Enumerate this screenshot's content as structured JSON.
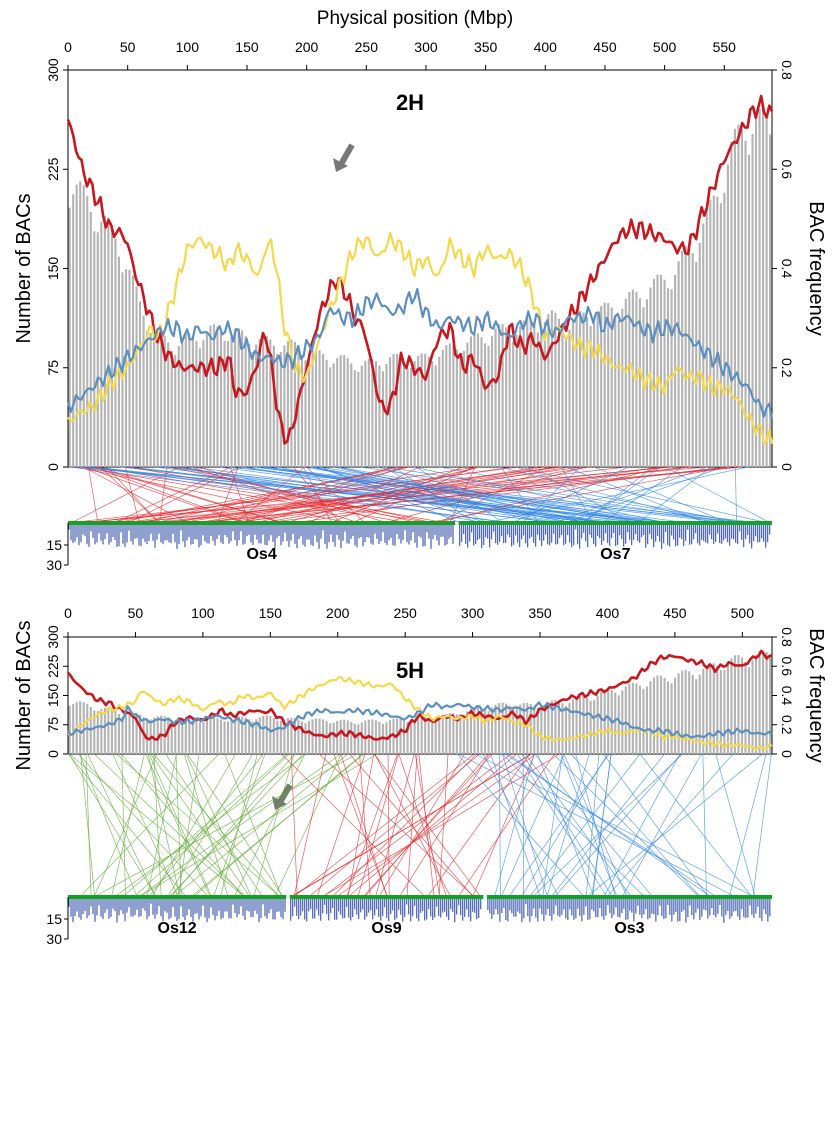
{
  "figure": {
    "top_axis_label": "Physical position (Mbp)",
    "colors": {
      "bars": "#b3b3b3",
      "red": "#c8171e",
      "yellow": "#f5d84c",
      "blue": "#5b8fc2",
      "syn_red": "#e8262b",
      "syn_blue": "#2f86e6",
      "syn_green": "#5aa82e",
      "rice_line": "#16a02a",
      "rice_bars": "#1f3fa0"
    }
  },
  "chart_data": [
    {
      "type": "bar",
      "title": "2H",
      "xlabel": "Physical position (Mbp)",
      "ylabel": "Number of BACs",
      "y2label": "BAC frequency",
      "xlim": [
        0,
        590
      ],
      "ylim": [
        0,
        300
      ],
      "y2lim": [
        0,
        0.8
      ],
      "xticks": [
        "0",
        "50",
        "100",
        "150",
        "200",
        "250",
        "300",
        "350",
        "400",
        "450",
        "500",
        "550"
      ],
      "yticks": [
        "0",
        "75",
        "150",
        "225",
        "300"
      ],
      "y2ticks": [
        "0",
        "0.2",
        "0.4",
        "0.6",
        "0.8"
      ],
      "bars": {
        "x": [
          0,
          15,
          30,
          45,
          60,
          75,
          90,
          105,
          120,
          135,
          150,
          165,
          180,
          195,
          210,
          225,
          240,
          255,
          270,
          285,
          300,
          315,
          330,
          345,
          360,
          375,
          390,
          405,
          420,
          435,
          450,
          465,
          480,
          495,
          510,
          525,
          540,
          555,
          570,
          585
        ],
        "values": [
          215,
          195,
          180,
          160,
          120,
          95,
          90,
          95,
          100,
          100,
          95,
          92,
          90,
          88,
          82,
          80,
          76,
          76,
          80,
          78,
          80,
          85,
          90,
          95,
          100,
          102,
          105,
          110,
          105,
          112,
          115,
          120,
          128,
          135,
          145,
          165,
          190,
          230,
          255,
          250
        ]
      },
      "series": [
        {
          "color": "red",
          "x": [
            0,
            5,
            12,
            20,
            28,
            35,
            45,
            50,
            55,
            65,
            75,
            85,
            95,
            105,
            115,
            125,
            135,
            140,
            150,
            160,
            165,
            172,
            178,
            185,
            190,
            200,
            210,
            218,
            225,
            235,
            240,
            248,
            255,
            262,
            270,
            280,
            290,
            300,
            310,
            320,
            330,
            340,
            350,
            360,
            370,
            380,
            390,
            400,
            410,
            420,
            430,
            440,
            450,
            460,
            470,
            480,
            490,
            500,
            510,
            520,
            530,
            540,
            550,
            560,
            570,
            575,
            580,
            585,
            590
          ],
          "values": [
            0.7,
            0.66,
            0.6,
            0.56,
            0.52,
            0.48,
            0.47,
            0.45,
            0.4,
            0.33,
            0.26,
            0.22,
            0.2,
            0.2,
            0.2,
            0.2,
            0.22,
            0.15,
            0.15,
            0.22,
            0.28,
            0.18,
            0.08,
            0.05,
            0.1,
            0.2,
            0.3,
            0.35,
            0.38,
            0.34,
            0.3,
            0.28,
            0.2,
            0.12,
            0.12,
            0.22,
            0.2,
            0.18,
            0.26,
            0.28,
            0.2,
            0.22,
            0.16,
            0.18,
            0.28,
            0.24,
            0.26,
            0.22,
            0.26,
            0.3,
            0.34,
            0.38,
            0.42,
            0.46,
            0.48,
            0.48,
            0.47,
            0.46,
            0.44,
            0.44,
            0.5,
            0.56,
            0.62,
            0.66,
            0.7,
            0.72,
            0.73,
            0.72,
            0.71
          ]
        },
        {
          "color": "yellow",
          "x": [
            0,
            10,
            20,
            30,
            40,
            50,
            60,
            65,
            70,
            75,
            80,
            90,
            100,
            110,
            120,
            130,
            135,
            140,
            150,
            160,
            165,
            170,
            175,
            180,
            190,
            200,
            210,
            220,
            230,
            240,
            250,
            260,
            270,
            280,
            290,
            300,
            310,
            320,
            330,
            340,
            350,
            360,
            370,
            380,
            390,
            400,
            410,
            420,
            430,
            440,
            450,
            460,
            470,
            480,
            490,
            500,
            510,
            520,
            530,
            540,
            550,
            560,
            570,
            580,
            590
          ],
          "values": [
            0.09,
            0.11,
            0.12,
            0.15,
            0.18,
            0.2,
            0.24,
            0.26,
            0.28,
            0.26,
            0.28,
            0.36,
            0.44,
            0.46,
            0.44,
            0.42,
            0.4,
            0.44,
            0.42,
            0.38,
            0.44,
            0.45,
            0.4,
            0.3,
            0.2,
            0.18,
            0.25,
            0.32,
            0.38,
            0.44,
            0.46,
            0.42,
            0.46,
            0.44,
            0.4,
            0.42,
            0.38,
            0.45,
            0.42,
            0.4,
            0.44,
            0.42,
            0.43,
            0.4,
            0.34,
            0.26,
            0.28,
            0.26,
            0.24,
            0.24,
            0.22,
            0.2,
            0.2,
            0.18,
            0.17,
            0.16,
            0.2,
            0.18,
            0.18,
            0.16,
            0.16,
            0.14,
            0.1,
            0.07,
            0.05
          ]
        },
        {
          "color": "blue",
          "x": [
            0,
            10,
            20,
            30,
            40,
            50,
            60,
            70,
            80,
            90,
            100,
            110,
            120,
            130,
            140,
            150,
            160,
            170,
            180,
            190,
            200,
            210,
            220,
            230,
            240,
            250,
            260,
            270,
            280,
            290,
            300,
            310,
            320,
            330,
            340,
            350,
            360,
            370,
            380,
            390,
            400,
            410,
            420,
            430,
            440,
            450,
            460,
            470,
            480,
            490,
            500,
            510,
            520,
            530,
            540,
            550,
            560,
            570,
            580,
            590
          ],
          "values": [
            0.12,
            0.14,
            0.16,
            0.18,
            0.2,
            0.22,
            0.24,
            0.26,
            0.28,
            0.28,
            0.26,
            0.28,
            0.26,
            0.28,
            0.27,
            0.24,
            0.22,
            0.22,
            0.21,
            0.22,
            0.24,
            0.26,
            0.32,
            0.3,
            0.3,
            0.33,
            0.34,
            0.31,
            0.32,
            0.35,
            0.31,
            0.28,
            0.3,
            0.29,
            0.28,
            0.3,
            0.28,
            0.26,
            0.29,
            0.3,
            0.28,
            0.27,
            0.3,
            0.3,
            0.31,
            0.28,
            0.3,
            0.3,
            0.28,
            0.27,
            0.28,
            0.28,
            0.26,
            0.24,
            0.22,
            0.2,
            0.18,
            0.16,
            0.12,
            0.11
          ]
        }
      ]
    },
    {
      "type": "bar",
      "title": "5H",
      "xlabel": "",
      "ylabel": "Number of BACs",
      "y2label": "BAC frequency",
      "xlim": [
        0,
        522
      ],
      "ylim": [
        0,
        300
      ],
      "y2lim": [
        0,
        0.8
      ],
      "xticks": [
        "0",
        "50",
        "100",
        "150",
        "200",
        "250",
        "300",
        "350",
        "400",
        "450",
        "500"
      ],
      "yticks": [
        "0",
        "75",
        "150",
        "225",
        "300"
      ],
      "y2ticks": [
        "0",
        "0.2",
        "0.4",
        "0.6",
        "0.8"
      ],
      "bars": {
        "x": [
          0,
          15,
          30,
          45,
          60,
          75,
          90,
          105,
          120,
          135,
          150,
          165,
          180,
          195,
          210,
          225,
          240,
          255,
          270,
          285,
          300,
          315,
          330,
          345,
          360,
          375,
          390,
          405,
          420,
          435,
          450,
          465,
          480,
          495,
          510,
          520
        ],
        "values": [
          135,
          120,
          110,
          100,
          92,
          90,
          88,
          85,
          88,
          90,
          92,
          86,
          85,
          84,
          80,
          82,
          84,
          86,
          90,
          98,
          110,
          120,
          125,
          120,
          128,
          135,
          145,
          160,
          170,
          185,
          195,
          205,
          220,
          235,
          245,
          248
        ]
      },
      "series": [
        {
          "color": "red",
          "x": [
            0,
            5,
            10,
            20,
            25,
            30,
            40,
            50,
            55,
            60,
            70,
            80,
            90,
            100,
            110,
            115,
            120,
            130,
            140,
            145,
            150,
            160,
            170,
            180,
            190,
            200,
            210,
            220,
            230,
            240,
            250,
            255,
            260,
            270,
            280,
            290,
            300,
            310,
            320,
            330,
            340,
            350,
            360,
            370,
            380,
            390,
            400,
            410,
            420,
            430,
            440,
            450,
            460,
            470,
            480,
            490,
            500,
            510,
            515,
            520
          ],
          "values": [
            0.55,
            0.5,
            0.45,
            0.38,
            0.36,
            0.35,
            0.3,
            0.25,
            0.15,
            0.1,
            0.12,
            0.22,
            0.25,
            0.23,
            0.28,
            0.3,
            0.26,
            0.28,
            0.3,
            0.28,
            0.3,
            0.22,
            0.18,
            0.14,
            0.12,
            0.14,
            0.14,
            0.12,
            0.1,
            0.12,
            0.16,
            0.22,
            0.26,
            0.22,
            0.26,
            0.24,
            0.28,
            0.26,
            0.24,
            0.28,
            0.22,
            0.3,
            0.34,
            0.38,
            0.4,
            0.42,
            0.44,
            0.48,
            0.52,
            0.6,
            0.66,
            0.67,
            0.64,
            0.62,
            0.58,
            0.62,
            0.6,
            0.67,
            0.69,
            0.66
          ]
        },
        {
          "color": "yellow",
          "x": [
            0,
            5,
            10,
            20,
            25,
            30,
            40,
            50,
            55,
            60,
            70,
            80,
            90,
            100,
            110,
            120,
            130,
            140,
            150,
            160,
            170,
            180,
            190,
            200,
            210,
            220,
            230,
            240,
            250,
            260,
            270,
            280,
            290,
            300,
            310,
            320,
            330,
            340,
            350,
            360,
            370,
            380,
            390,
            400,
            410,
            420,
            430,
            440,
            450,
            460,
            470,
            480,
            490,
            500,
            510,
            520
          ],
          "values": [
            0.12,
            0.16,
            0.2,
            0.26,
            0.28,
            0.3,
            0.32,
            0.36,
            0.44,
            0.4,
            0.34,
            0.38,
            0.36,
            0.3,
            0.36,
            0.34,
            0.4,
            0.38,
            0.42,
            0.32,
            0.38,
            0.44,
            0.48,
            0.52,
            0.5,
            0.48,
            0.46,
            0.48,
            0.38,
            0.3,
            0.24,
            0.26,
            0.24,
            0.26,
            0.22,
            0.26,
            0.22,
            0.2,
            0.12,
            0.1,
            0.1,
            0.12,
            0.14,
            0.16,
            0.14,
            0.16,
            0.16,
            0.12,
            0.12,
            0.1,
            0.08,
            0.07,
            0.06,
            0.06,
            0.04,
            0.05
          ]
        },
        {
          "color": "blue",
          "x": [
            0,
            10,
            20,
            30,
            40,
            45,
            50,
            60,
            70,
            80,
            90,
            100,
            110,
            120,
            130,
            140,
            150,
            160,
            170,
            180,
            190,
            200,
            210,
            220,
            230,
            240,
            250,
            260,
            270,
            280,
            290,
            300,
            310,
            320,
            330,
            340,
            350,
            360,
            370,
            380,
            390,
            400,
            410,
            420,
            430,
            440,
            450,
            460,
            470,
            480,
            490,
            500,
            510,
            520
          ],
          "values": [
            0.14,
            0.16,
            0.18,
            0.2,
            0.24,
            0.32,
            0.26,
            0.22,
            0.24,
            0.22,
            0.22,
            0.24,
            0.26,
            0.24,
            0.22,
            0.2,
            0.16,
            0.18,
            0.24,
            0.28,
            0.3,
            0.28,
            0.3,
            0.29,
            0.28,
            0.26,
            0.24,
            0.28,
            0.34,
            0.32,
            0.34,
            0.32,
            0.31,
            0.3,
            0.32,
            0.3,
            0.34,
            0.32,
            0.3,
            0.28,
            0.26,
            0.24,
            0.22,
            0.18,
            0.16,
            0.16,
            0.14,
            0.12,
            0.12,
            0.14,
            0.15,
            0.16,
            0.14,
            0.14
          ]
        }
      ]
    }
  ],
  "rice": [
    {
      "segments": [
        {
          "label": "Os4",
          "start": 0,
          "end": 0.55
        },
        {
          "label": "Os7",
          "start": 0.555,
          "end": 1
        }
      ],
      "yticks": [
        "15",
        "30"
      ]
    },
    {
      "segments": [
        {
          "label": "Os12",
          "start": 0,
          "end": 0.31
        },
        {
          "label": "Os9",
          "start": 0.315,
          "end": 0.59
        },
        {
          "label": "Os3",
          "start": 0.595,
          "end": 1
        }
      ],
      "yticks": [
        "15",
        "30"
      ]
    }
  ]
}
